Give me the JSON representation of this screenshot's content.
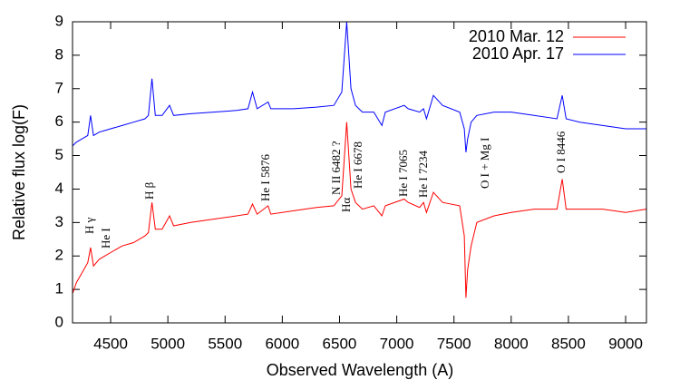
{
  "chart_data": {
    "type": "line",
    "xlabel": "Observed Wavelength (A)",
    "ylabel": "Relative flux log(F)",
    "x": [
      4170,
      4200,
      4250,
      4300,
      4325,
      4350,
      4400,
      4450,
      4500,
      4600,
      4700,
      4800,
      4830,
      4861,
      4890,
      4950,
      5015,
      5050,
      5200,
      5400,
      5600,
      5700,
      5740,
      5780,
      5876,
      5900,
      6100,
      6300,
      6450,
      6520,
      6563,
      6600,
      6640,
      6700,
      6800,
      6870,
      6900,
      7065,
      7100,
      7200,
      7234,
      7260,
      7320,
      7400,
      7550,
      7590,
      7605,
      7620,
      7650,
      7700,
      7850,
      8000,
      8200,
      8400,
      8446,
      8480,
      8600,
      8800,
      9000,
      9180
    ],
    "series": [
      {
        "name": "2010 Mar. 12",
        "color": "#ff0000",
        "values": [
          0.9,
          1.2,
          1.5,
          1.8,
          2.25,
          1.7,
          1.9,
          2.0,
          2.1,
          2.3,
          2.4,
          2.6,
          2.7,
          3.6,
          2.8,
          2.8,
          3.2,
          2.9,
          3.0,
          3.1,
          3.2,
          3.25,
          3.55,
          3.25,
          3.5,
          3.25,
          3.35,
          3.45,
          3.5,
          3.8,
          6.0,
          4.0,
          3.6,
          3.4,
          3.5,
          3.2,
          3.5,
          3.7,
          3.6,
          3.45,
          3.6,
          3.3,
          3.9,
          3.6,
          3.5,
          2.6,
          0.75,
          1.6,
          2.3,
          3.0,
          3.2,
          3.3,
          3.4,
          3.4,
          4.3,
          3.4,
          3.4,
          3.4,
          3.3,
          3.4
        ]
      },
      {
        "name": "2010 Apr. 17",
        "color": "#0000ff",
        "values": [
          5.3,
          5.4,
          5.5,
          5.6,
          6.2,
          5.6,
          5.7,
          5.75,
          5.8,
          5.9,
          6.0,
          6.1,
          6.2,
          7.3,
          6.2,
          6.2,
          6.5,
          6.2,
          6.25,
          6.3,
          6.35,
          6.4,
          6.9,
          6.4,
          6.6,
          6.4,
          6.4,
          6.45,
          6.5,
          6.9,
          9.0,
          7.0,
          6.5,
          6.3,
          6.3,
          5.9,
          6.3,
          6.5,
          6.4,
          6.3,
          6.4,
          6.1,
          6.8,
          6.5,
          6.3,
          5.8,
          5.1,
          5.5,
          6.0,
          6.2,
          6.3,
          6.3,
          6.2,
          6.1,
          6.8,
          6.1,
          6.0,
          5.9,
          5.8,
          5.8
        ]
      }
    ],
    "xlim": [
      4167,
      9182
    ],
    "ylim": [
      0,
      9
    ],
    "xticks": [
      4500,
      5000,
      5500,
      6000,
      6500,
      7000,
      7500,
      8000,
      8500,
      9000
    ],
    "yticks": [
      0,
      1,
      2,
      3,
      4,
      5,
      6,
      7,
      8,
      9
    ],
    "legend": "top-right",
    "annotations": [
      "H γ",
      "He I",
      "H β",
      "He I 5876",
      "N II 6482 ?",
      "Hα",
      "He I 6678",
      "He I 7065",
      "He I 7234",
      "O I + Mg I",
      "O I 8446"
    ]
  }
}
